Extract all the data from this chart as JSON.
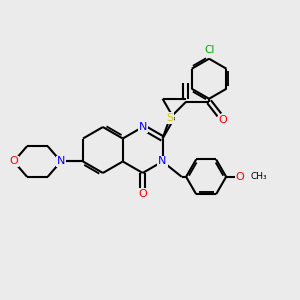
{
  "bg_color": "#ebebeb",
  "bond_color": "#000000",
  "N_color": "#0000ff",
  "O_color": "#ff0000",
  "S_color": "#cccc00",
  "Cl_color": "#00aa00",
  "line_width": 1.5,
  "dbo": 0.08,
  "figsize": [
    3.0,
    3.0
  ],
  "dpi": 100,
  "xlim": [
    0,
    10
  ],
  "ylim": [
    0,
    10
  ]
}
